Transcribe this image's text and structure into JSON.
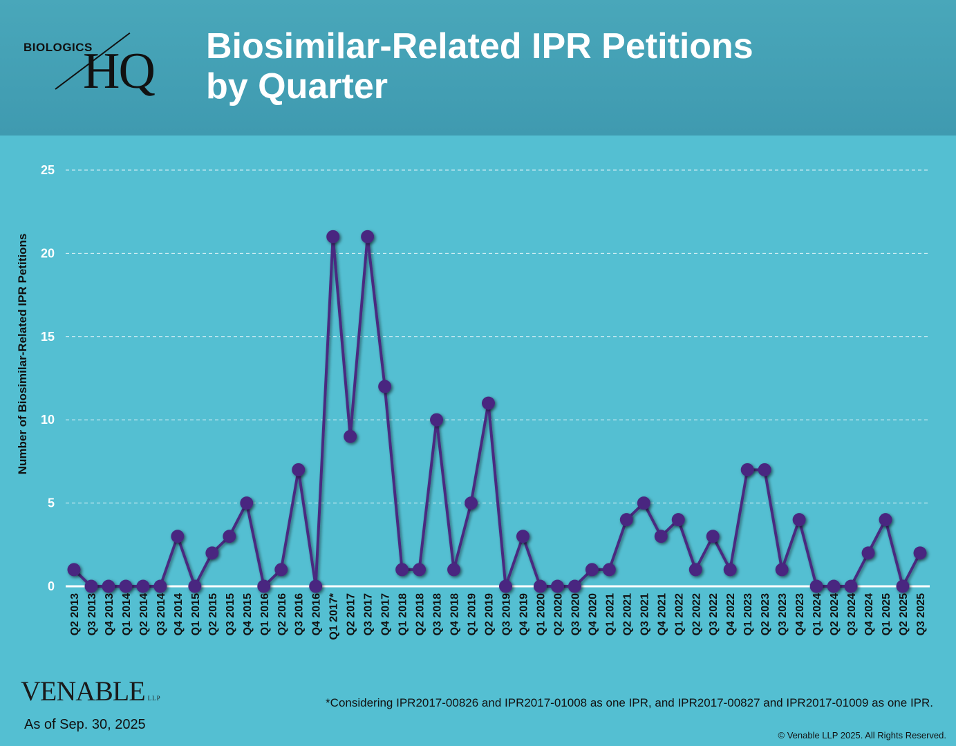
{
  "logo": {
    "small": "BIOLOGICS",
    "big": "HQ"
  },
  "title": {
    "line1": "Biosimilar-Related IPR Petitions",
    "line2": "by Quarter"
  },
  "chart_data": {
    "type": "line",
    "title": "Biosimilar-Related IPR Petitions by Quarter",
    "xlabel": "",
    "ylabel": "Number of Biosimilar-Related IPR Petitions",
    "ylim": [
      0,
      25
    ],
    "yticks": [
      0,
      5,
      10,
      15,
      20,
      25
    ],
    "grid": true,
    "categories": [
      "Q2 2013",
      "Q3 2013",
      "Q4 2013",
      "Q1 2014",
      "Q2 2014",
      "Q3 2014",
      "Q4 2014",
      "Q1 2015",
      "Q2 2015",
      "Q3 2015",
      "Q4 2015",
      "Q1 2016",
      "Q2 2016",
      "Q3 2016",
      "Q4 2016",
      "Q1 2017*",
      "Q2 2017",
      "Q3 2017",
      "Q4 2017",
      "Q1 2018",
      "Q2 2018",
      "Q3 2018",
      "Q4 2018",
      "Q1 2019",
      "Q2 2019",
      "Q3 2019",
      "Q4 2019",
      "Q1 2020",
      "Q2 2020",
      "Q3 2020",
      "Q4 2020",
      "Q1 2021",
      "Q2 2021",
      "Q3 2021",
      "Q4 2021",
      "Q1 2022",
      "Q2 2022",
      "Q3 2022",
      "Q4 2022",
      "Q1 2023",
      "Q2 2023",
      "Q3 2023",
      "Q4 2023",
      "Q1 2024",
      "Q2 2024",
      "Q3 2024",
      "Q4 2024",
      "Q1 2025",
      "Q2 2025",
      "Q3 2025"
    ],
    "values": [
      1,
      0,
      0,
      0,
      0,
      0,
      3,
      0,
      2,
      3,
      5,
      0,
      1,
      7,
      0,
      21,
      9,
      21,
      12,
      1,
      1,
      10,
      1,
      5,
      11,
      0,
      3,
      0,
      0,
      0,
      1,
      1,
      4,
      5,
      3,
      4,
      1,
      3,
      1,
      7,
      7,
      1,
      4,
      0,
      0,
      0,
      2,
      4,
      0,
      2
    ],
    "colors": {
      "line": "#4a2a80",
      "marker": "#4a2580",
      "grid": "#e8f6f9",
      "axis": "#ffffff",
      "tick_text": "#ffffff",
      "category_text": "#111111"
    }
  },
  "footer": {
    "brand": "VENABLE",
    "brand_suffix": "LLP",
    "as_of": "As of Sep. 30, 2025",
    "footnote": "*Considering IPR2017-00826 and IPR2017-01008 as one IPR, and IPR2017-00827 and IPR2017-01009 as one IPR.",
    "copyright": "© Venable LLP 2025. All Rights Reserved."
  }
}
